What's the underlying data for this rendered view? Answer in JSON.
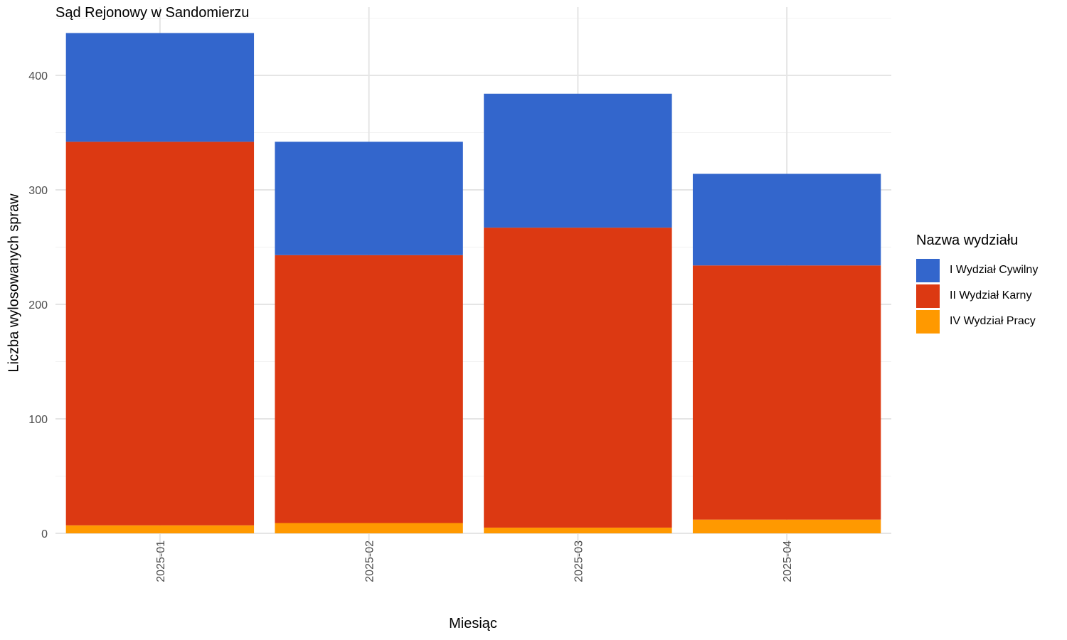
{
  "chart_data": {
    "type": "bar",
    "stacked": true,
    "title": "Sąd Rejonowy w Sandomierzu",
    "xlabel": "Miesiąc",
    "ylabel": "Liczba wylosowanych spraw",
    "categories": [
      "2025-01",
      "2025-02",
      "2025-03",
      "2025-04"
    ],
    "ylim": [
      0,
      440
    ],
    "yticks": [
      0,
      100,
      200,
      300,
      400
    ],
    "grid": true,
    "legend": {
      "title": "Nazwa wydziału",
      "position": "right"
    },
    "series": [
      {
        "name": "IV Wydział Pracy",
        "color": "#ff9900",
        "values": [
          7,
          9,
          5,
          12
        ]
      },
      {
        "name": "II Wydział Karny",
        "color": "#dc3912",
        "values": [
          335,
          234,
          262,
          222
        ]
      },
      {
        "name": "I Wydział Cywilny",
        "color": "#3366cc",
        "values": [
          95,
          99,
          117,
          80
        ]
      }
    ]
  }
}
